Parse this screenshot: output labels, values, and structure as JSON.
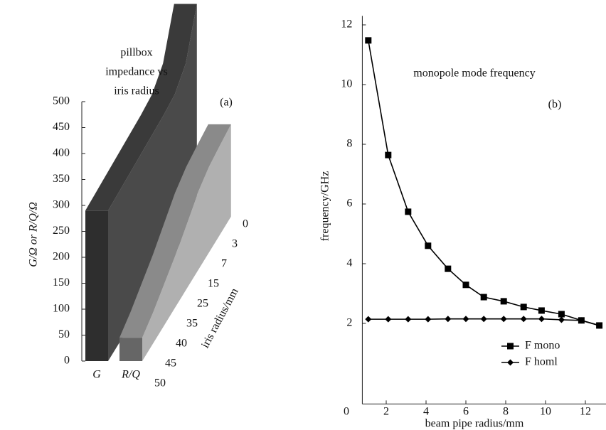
{
  "chart_data": [
    {
      "type": "ribbon3d",
      "annotation": [
        "pillbox",
        "impedance vs",
        "iris radius"
      ],
      "panel_label": "(a)",
      "ylabel": "G/Ω or R/Q/Ω",
      "depth_label": "iris radius/mm",
      "categories": [
        "0",
        "3",
        "7",
        "15",
        "25",
        "35",
        "40",
        "45",
        "50"
      ],
      "series": [
        {
          "name": "G",
          "color": [
            "#2e2e2e",
            "#3a3a3a",
            "#4a4a4a"
          ],
          "values": [
            410,
            330,
            305,
            300,
            298,
            296,
            294,
            292,
            290
          ]
        },
        {
          "name": "R/Q",
          "color": [
            "#666666",
            "#8a8a8a",
            "#b0b0b0"
          ],
          "values": [
            178,
            172,
            165,
            150,
            125,
            100,
            80,
            60,
            45
          ]
        }
      ],
      "ylim": [
        0,
        500
      ],
      "yticks": [
        0,
        50,
        100,
        150,
        200,
        250,
        300,
        350,
        400,
        450,
        500
      ]
    },
    {
      "type": "line",
      "title": "monopole mode frequency",
      "panel_label": "(b)",
      "xlabel": "beam pipe radius/mm",
      "ylabel": "frequency/GHz",
      "x": [
        1.1,
        2.1,
        3.1,
        4.1,
        5.1,
        6.0,
        6.9,
        7.9,
        8.9,
        9.8,
        10.8,
        11.8,
        12.7
      ],
      "series": [
        {
          "name": "F mono",
          "color": "#000000",
          "marker": "square",
          "values": [
            11.48,
            7.64,
            5.74,
            4.6,
            3.83,
            3.29,
            2.88,
            2.74,
            2.55,
            2.43,
            2.31,
            2.1,
            1.93
          ]
        },
        {
          "name": "F homl",
          "color": "#000000",
          "marker": "diamond",
          "values": [
            2.14,
            2.14,
            2.14,
            2.14,
            2.15,
            2.15,
            2.15,
            2.15,
            2.15,
            2.15,
            2.12,
            2.1,
            1.93
          ]
        }
      ],
      "xlim": [
        0.8,
        13.1
      ],
      "ylim": [
        -0.7,
        12.3
      ],
      "xticks": [
        0,
        2,
        4,
        6,
        8,
        10,
        12
      ],
      "yticks": [
        2,
        4,
        6,
        8,
        10,
        12
      ],
      "legend": "lower right"
    }
  ]
}
